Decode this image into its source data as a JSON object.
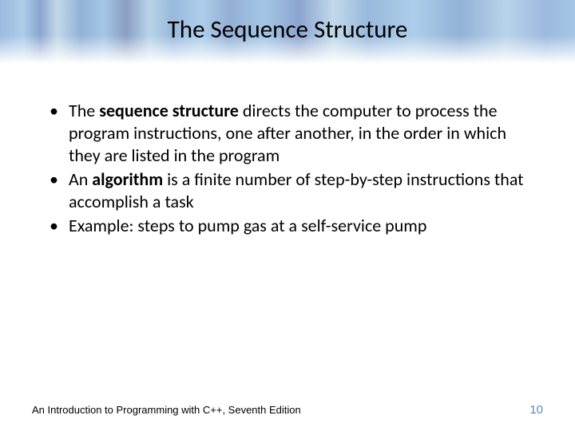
{
  "title": "The Sequence Structure",
  "bullets": [
    {
      "bold_lead": "sequence structure",
      "prefix": "The ",
      "rest": " directs the computer to process the program instructions, one after another, in the order in which they are listed in the program"
    },
    {
      "bold_lead": "algorithm",
      "prefix": "An ",
      "rest": " is a finite number of step-by-step instructions that accomplish a task"
    },
    {
      "bold_lead": "",
      "prefix": "Example: steps to pump gas at a self-service pump",
      "rest": ""
    }
  ],
  "footer_text": "An Introduction to Programming with C++, Seventh Edition",
  "page_number": "10",
  "colors": {
    "page_number": "#5a8abf",
    "text": "#000000",
    "background": "#ffffff"
  },
  "typography": {
    "title_fontsize": 31,
    "body_fontsize": 22,
    "footer_fontsize": 13,
    "pagenum_fontsize": 15
  }
}
